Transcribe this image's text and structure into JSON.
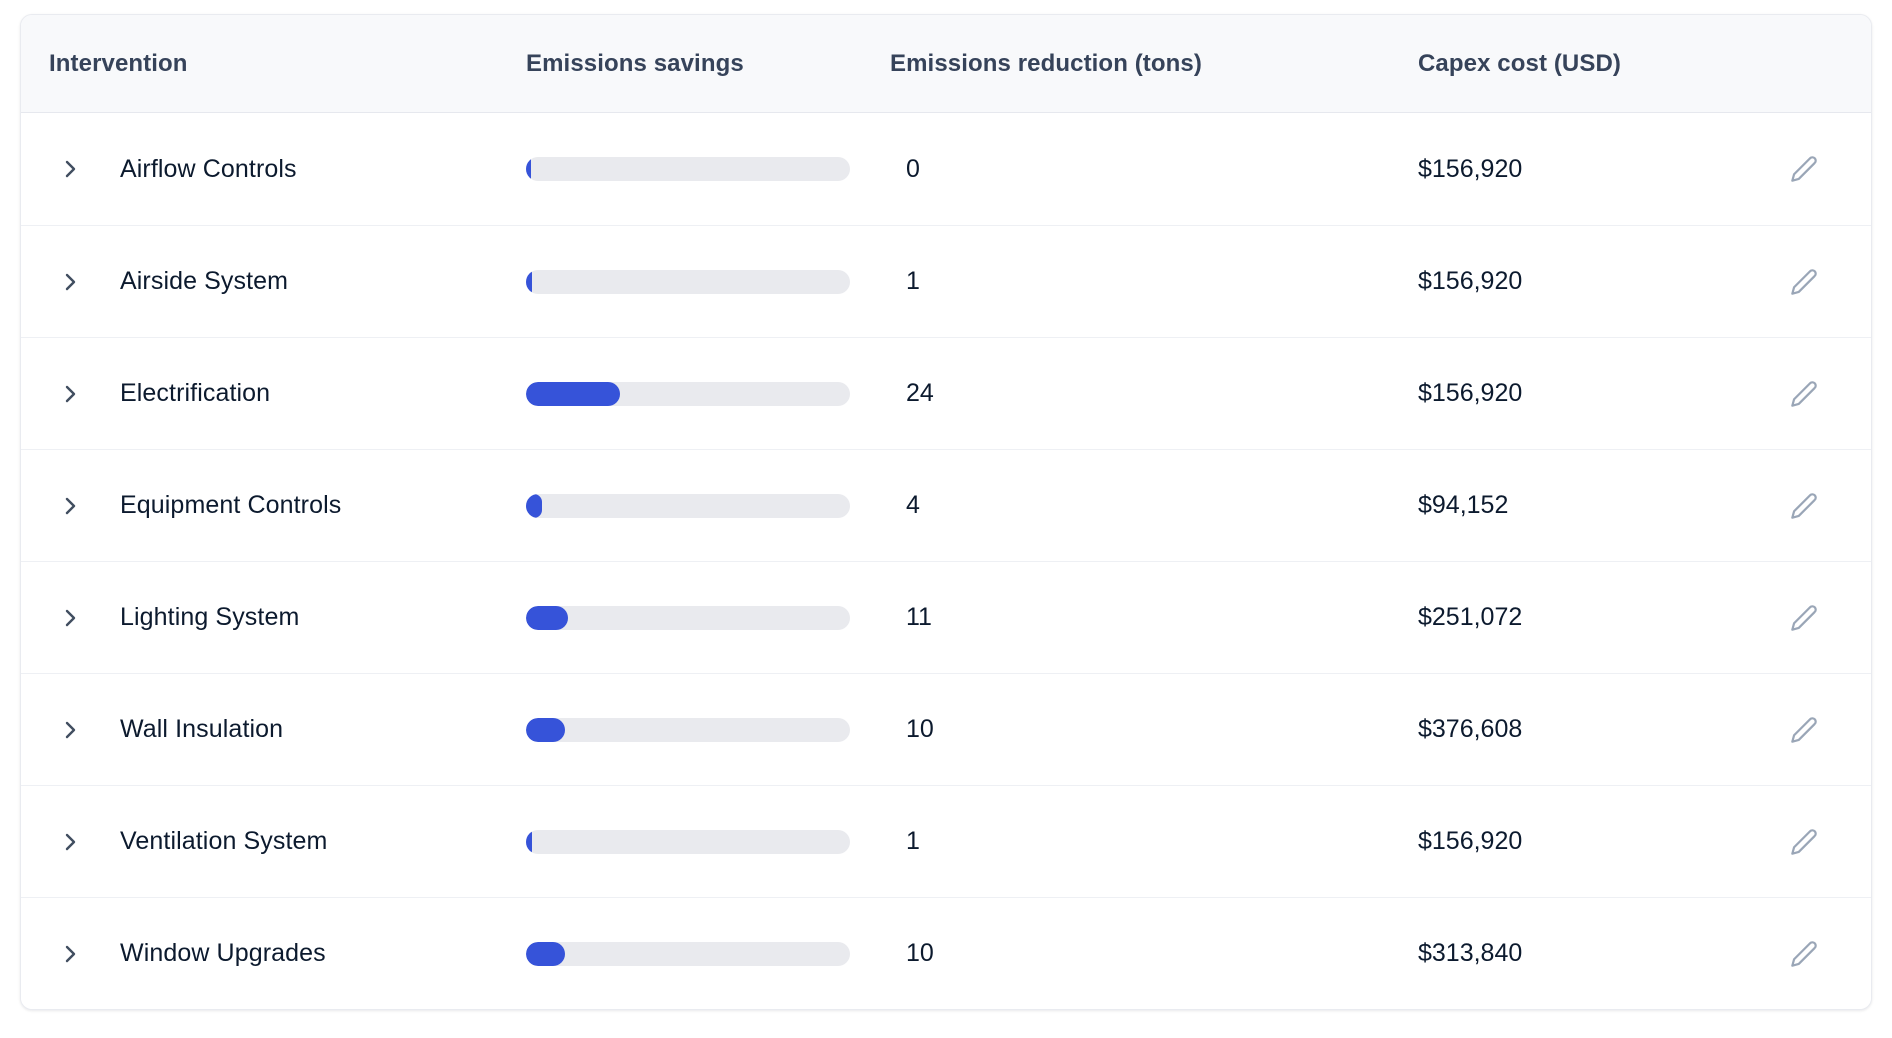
{
  "table": {
    "columns": [
      {
        "label": "Intervention"
      },
      {
        "label": "Emissions savings"
      },
      {
        "label": "Emissions reduction (tons)"
      },
      {
        "label": "Capex cost (USD)"
      }
    ],
    "rows": [
      {
        "intervention": "Airflow Controls",
        "savings_pct": 1,
        "reduction_tons": "0",
        "capex": "$156,920"
      },
      {
        "intervention": "Airside System",
        "savings_pct": 2,
        "reduction_tons": "1",
        "capex": "$156,920"
      },
      {
        "intervention": "Electrification",
        "savings_pct": 29,
        "reduction_tons": "24",
        "capex": "$156,920"
      },
      {
        "intervention": "Equipment Controls",
        "savings_pct": 5,
        "reduction_tons": "4",
        "capex": "$94,152"
      },
      {
        "intervention": "Lighting System",
        "savings_pct": 13,
        "reduction_tons": "11",
        "capex": "$251,072"
      },
      {
        "intervention": "Wall Insulation",
        "savings_pct": 12,
        "reduction_tons": "10",
        "capex": "$376,608"
      },
      {
        "intervention": "Ventilation System",
        "savings_pct": 2,
        "reduction_tons": "1",
        "capex": "$156,920"
      },
      {
        "intervention": "Window Upgrades",
        "savings_pct": 12,
        "reduction_tons": "10",
        "capex": "$313,840"
      }
    ],
    "icons": {
      "expand": "chevron-right-icon",
      "edit": "pencil-icon"
    },
    "colors": {
      "bar_fill": "#3653d9",
      "bar_track": "#e9eaee",
      "header_bg": "#f8f9fb",
      "header_text": "#36435a",
      "row_text": "#0c1a2e",
      "muted_icon": "#9aa6b7"
    }
  }
}
